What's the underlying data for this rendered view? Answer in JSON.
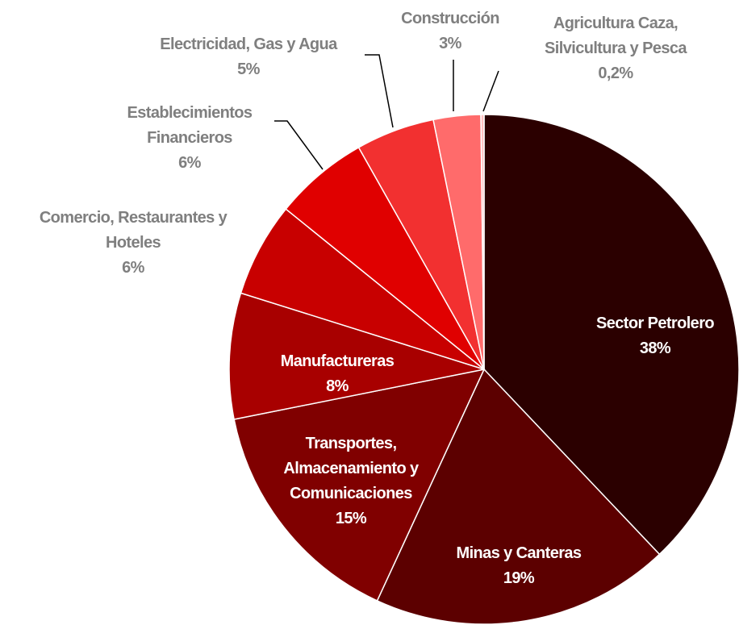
{
  "chart_data": {
    "type": "pie",
    "categories": [
      "Sector Petrolero",
      "Minas y Canteras",
      "Transportes,\nAlmacenamiento y\nComunicaciones",
      "Manufactureras",
      "Comercio, Restaurantes y\nHoteles",
      "Establecimientos\nFinancieros",
      "Electricidad, Gas y Agua",
      "Construcción",
      "Agricultura Caza,\nSilvicultura y Pesca"
    ],
    "values": [
      38,
      19,
      15,
      8,
      6,
      6,
      5,
      3,
      0.2
    ],
    "value_labels": [
      "38%",
      "19%",
      "15%",
      "8%",
      "6%",
      "6%",
      "5%",
      "3%",
      "0,2%"
    ],
    "colors": [
      "#2b0000",
      "#5c0000",
      "#800000",
      "#a80000",
      "#c80000",
      "#e00000",
      "#f23030",
      "#ff6b6b",
      "#ffc0c0"
    ]
  }
}
